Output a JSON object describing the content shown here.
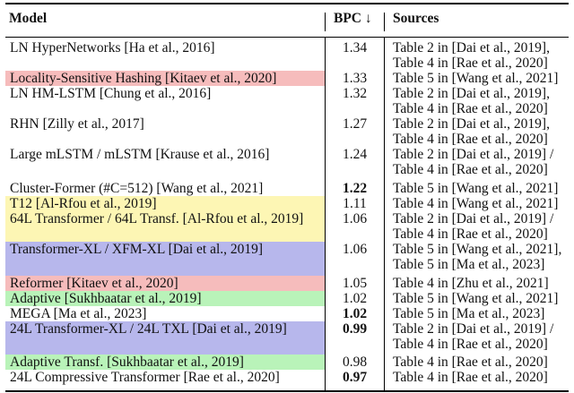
{
  "headers": {
    "model": "Model",
    "bpc": "BPC ↓",
    "sources": "Sources"
  },
  "colors": {
    "pink": "#f6bcbc",
    "yellow": "#fdf6b4",
    "blue": "#b7b7ec",
    "green": "#b9f3b9"
  },
  "rows": [
    {
      "model": "LN HyperNetworks [Ha et al., 2016]",
      "bpc": "1.34",
      "bold": false,
      "highlight": "",
      "sources": [
        "Table 2 in [Dai et al., 2019],",
        "Table 4 in [Rae et al., 2020]"
      ]
    },
    {
      "model": "Locality-Sensitive Hashing [Kitaev et al., 2020]",
      "bpc": "1.33",
      "bold": false,
      "highlight": "pink",
      "sources": [
        "Table 5 in [Wang et al., 2021]"
      ]
    },
    {
      "model": "LN HM-LSTM [Chung et al., 2016]",
      "bpc": "1.32",
      "bold": false,
      "highlight": "",
      "sources": [
        "Table 2 in [Dai et al., 2019],",
        "Table 4 in [Rae et al., 2020]"
      ]
    },
    {
      "model": "RHN [Zilly et al., 2017]",
      "bpc": "1.27",
      "bold": false,
      "highlight": "",
      "sources": [
        "Table 2 in [Dai et al., 2019],",
        "Table 4 in [Rae et al., 2020]"
      ]
    },
    {
      "model": "Large mLSTM / mLSTM [Krause et al., 2016]",
      "bpc": "1.24",
      "bold": false,
      "highlight": "",
      "sources": [
        "Table 2 in [Dai et al., 2019] /",
        "Table 4 in [Rae et al., 2020]"
      ]
    },
    {
      "model": "Cluster-Former (#C=512) [Wang et al., 2021]",
      "bpc": "1.22",
      "bold": true,
      "highlight": "",
      "sources": [
        "Table 5 in [Wang et al., 2021]"
      ]
    },
    {
      "model": "T12 [Al-Rfou et al., 2019]",
      "bpc": "1.11",
      "bold": false,
      "highlight": "yellow",
      "sources": [
        "Table 4 in [Wang et al., 2021]"
      ]
    },
    {
      "model": "64L Transformer / 64L Transf. [Al-Rfou et al., 2019]",
      "bpc": "1.06",
      "bold": false,
      "highlight": "yellow",
      "sources": [
        "Table 2 in [Dai et al., 2019] /",
        "Table 4 in [Rae et al., 2020]"
      ]
    },
    {
      "model": "Transformer-XL / XFM-XL [Dai et al., 2019]",
      "bpc": "1.06",
      "bold": false,
      "highlight": "blue",
      "sources": [
        "Table 5 in [Wang et al., 2021],",
        "Table 5 in [Ma et al., 2023]"
      ]
    },
    {
      "model": "Reformer [Kitaev et al., 2020]",
      "bpc": "1.05",
      "bold": false,
      "highlight": "pink",
      "sources": [
        "Table 4 in [Zhu et al., 2021]"
      ]
    },
    {
      "model": "Adaptive [Sukhbaatar et al., 2019]",
      "bpc": "1.02",
      "bold": false,
      "highlight": "green",
      "sources": [
        "Table 5 in [Wang et al., 2021]"
      ]
    },
    {
      "model": "MEGA [Ma et al., 2023]",
      "bpc": "1.02",
      "bold": true,
      "highlight": "",
      "sources": [
        "Table 5 in [Ma et al., 2023]"
      ]
    },
    {
      "model": "24L Transformer-XL / 24L TXL [Dai et al., 2019]",
      "bpc": "0.99",
      "bold": true,
      "highlight": "blue",
      "sources": [
        "Table 2 in [Dai et al., 2019] /",
        "Table 4 in [Rae et al., 2020]"
      ]
    },
    {
      "model": "Adaptive Transf. [Sukhbaatar et al., 2019]",
      "bpc": "0.98",
      "bold": false,
      "highlight": "green",
      "sources": [
        "Table 4 in [Rae et al., 2020]"
      ]
    },
    {
      "model": "24L Compressive Transformer [Rae et al., 2020]",
      "bpc": "0.97",
      "bold": true,
      "highlight": "",
      "sources": [
        "Table 4 in [Rae et al., 2020]"
      ]
    }
  ]
}
